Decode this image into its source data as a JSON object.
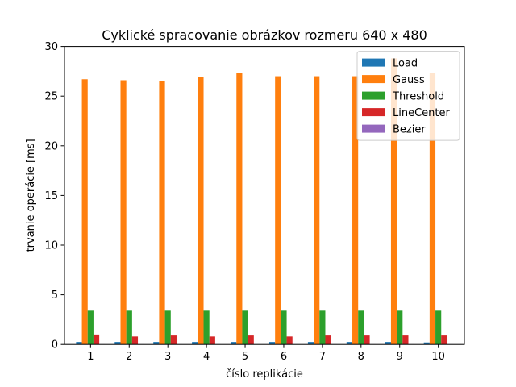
{
  "chart_data": {
    "type": "bar",
    "title": "Cyklické spracovanie obrázkov rozmeru 640 x 480",
    "xlabel": "číslo replikácie",
    "ylabel": "trvanie operácie [ms]",
    "ylim": [
      0,
      30
    ],
    "yticks": [
      0,
      5,
      10,
      15,
      20,
      25,
      30
    ],
    "categories": [
      "1",
      "2",
      "3",
      "4",
      "5",
      "6",
      "7",
      "8",
      "9",
      "10"
    ],
    "legend_position": "top-right",
    "grid": false,
    "series": [
      {
        "name": "Load",
        "color": "#1f77b4",
        "values": [
          0.25,
          0.25,
          0.25,
          0.25,
          0.25,
          0.25,
          0.25,
          0.25,
          0.25,
          0.2
        ]
      },
      {
        "name": "Gauss",
        "color": "#ff7f0e",
        "values": [
          26.7,
          26.6,
          26.5,
          26.9,
          27.3,
          27.0,
          27.0,
          27.0,
          28.8,
          27.3
        ]
      },
      {
        "name": "Threshold",
        "color": "#2ca02c",
        "values": [
          3.4,
          3.4,
          3.4,
          3.4,
          3.4,
          3.4,
          3.4,
          3.4,
          3.4,
          3.4
        ]
      },
      {
        "name": "LineCenter",
        "color": "#d62728",
        "values": [
          1.0,
          0.8,
          0.9,
          0.8,
          0.9,
          0.8,
          0.9,
          0.9,
          0.9,
          0.9
        ]
      },
      {
        "name": "Bezier",
        "color": "#9467bd",
        "values": [
          0.02,
          0.02,
          0.02,
          0.02,
          0.02,
          0.02,
          0.02,
          0.02,
          0.02,
          0.02
        ]
      }
    ]
  }
}
